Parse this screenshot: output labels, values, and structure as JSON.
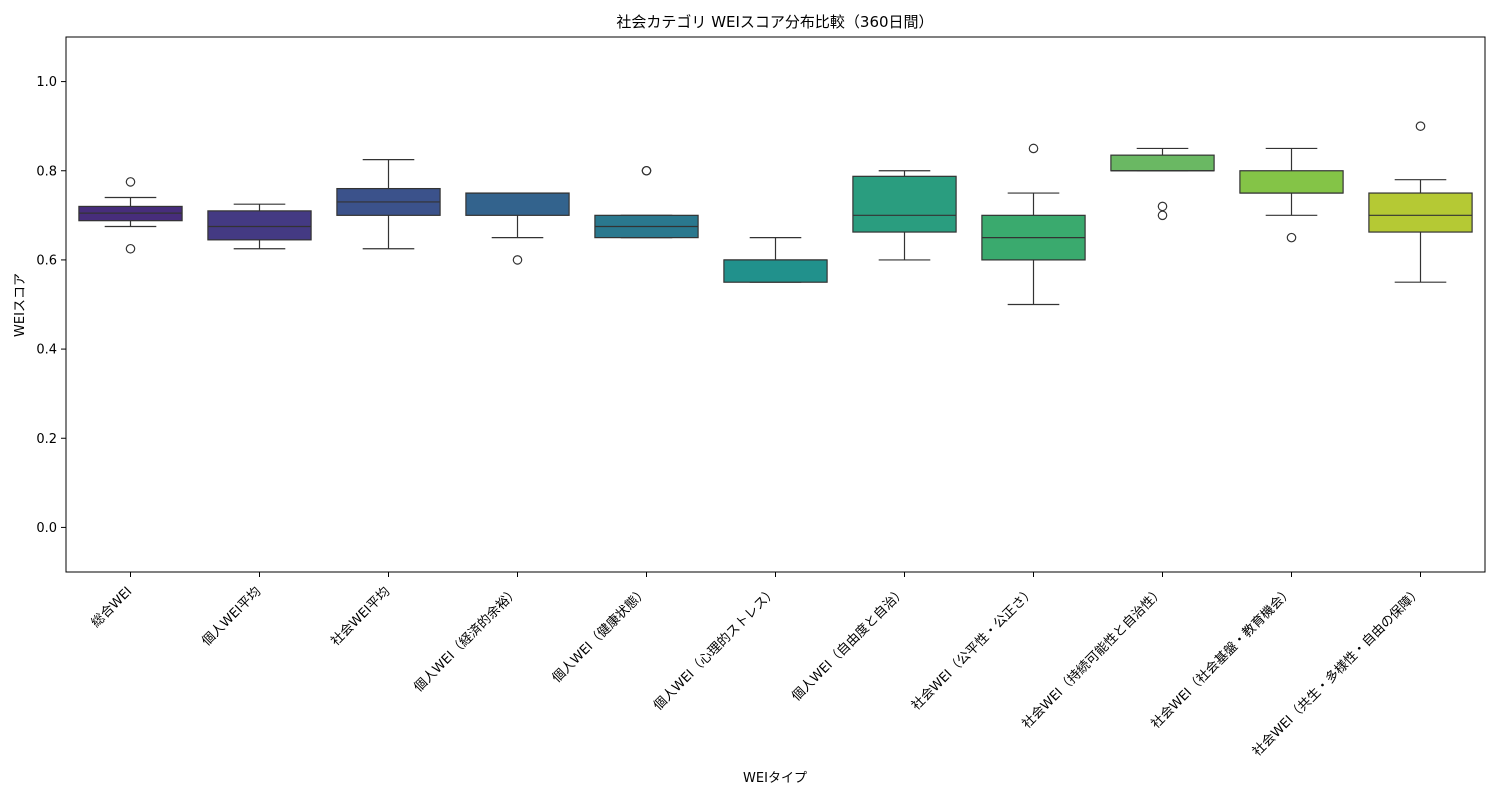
{
  "chart_data": {
    "type": "box",
    "title": "社会カテゴリ WEIスコア分布比較（360日間）",
    "xlabel": "WEIタイプ",
    "ylabel": "WEIスコア",
    "ylim": [
      -0.1,
      1.1
    ],
    "yticks": [
      "0.0",
      "0.2",
      "0.4",
      "0.6",
      "0.8",
      "1.0"
    ],
    "ytick_values": [
      0.0,
      0.2,
      0.4,
      0.6,
      0.8,
      1.0
    ],
    "grid": false,
    "legend": "none",
    "categories": [
      "総合WEI",
      "個人WEI平均",
      "社会WEI平均",
      "個人WEI（経済的余裕）",
      "個人WEI（健康状態）",
      "個人WEI（心理的ストレス）",
      "個人WEI（自由度と自治）",
      "社会WEI（公平性・公正さ）",
      "社会WEI（持続可能性と自治性）",
      "社会WEI（社会基盤・教育機会）",
      "社会WEI（共生・多様性・自由の保障）"
    ],
    "boxes": [
      {
        "color": "#472d7b",
        "whisker_low": 0.675,
        "q1": 0.688,
        "median": 0.705,
        "q3": 0.72,
        "whisker_high": 0.74,
        "outliers": [
          0.775,
          0.625
        ]
      },
      {
        "color": "#443a83",
        "whisker_low": 0.625,
        "q1": 0.645,
        "median": 0.675,
        "q3": 0.71,
        "whisker_high": 0.725,
        "outliers": []
      },
      {
        "color": "#3b528b",
        "whisker_low": 0.625,
        "q1": 0.7,
        "median": 0.73,
        "q3": 0.76,
        "whisker_high": 0.825,
        "outliers": []
      },
      {
        "color": "#33638d",
        "whisker_low": 0.65,
        "q1": 0.7,
        "median": 0.75,
        "q3": 0.75,
        "whisker_high": 0.75,
        "outliers": [
          0.6
        ]
      },
      {
        "color": "#2a788e",
        "whisker_low": 0.65,
        "q1": 0.65,
        "median": 0.675,
        "q3": 0.7,
        "whisker_high": 0.7,
        "outliers": [
          0.8,
          0.8
        ]
      },
      {
        "color": "#21918c",
        "whisker_low": 0.55,
        "q1": 0.55,
        "median": 0.6,
        "q3": 0.6,
        "whisker_high": 0.65,
        "outliers": []
      },
      {
        "color": "#2a9d7f",
        "whisker_low": 0.6,
        "q1": 0.6625,
        "median": 0.7,
        "q3": 0.7875,
        "whisker_high": 0.8,
        "outliers": []
      },
      {
        "color": "#3aaa6e",
        "whisker_low": 0.5,
        "q1": 0.6,
        "median": 0.65,
        "q3": 0.7,
        "whisker_high": 0.75,
        "outliers": [
          0.85
        ]
      },
      {
        "color": "#6ab863",
        "whisker_low": 0.8,
        "q1": 0.8,
        "median": 0.8,
        "q3": 0.835,
        "whisker_high": 0.85,
        "outliers": [
          0.72,
          0.7
        ]
      },
      {
        "color": "#84c447",
        "whisker_low": 0.7,
        "q1": 0.75,
        "median": 0.75,
        "q3": 0.8,
        "whisker_high": 0.85,
        "outliers": [
          0.65
        ]
      },
      {
        "color": "#b5c934",
        "whisker_low": 0.55,
        "q1": 0.6625,
        "median": 0.7,
        "q3": 0.75,
        "whisker_high": 0.78,
        "outliers": [
          0.9
        ]
      }
    ]
  }
}
